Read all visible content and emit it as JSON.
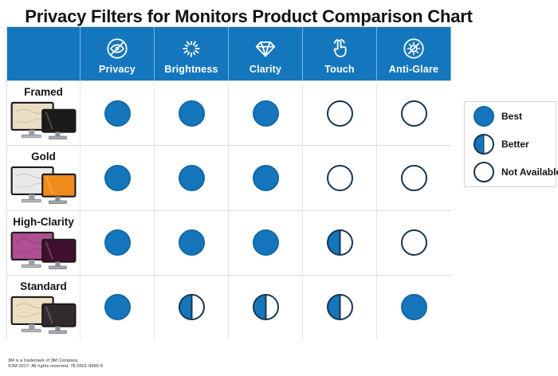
{
  "title": "Privacy Filters for Monitors Product Comparison Chart",
  "colors": {
    "header_blue": "#1477bd",
    "circle_blue": "#1576bb",
    "circle_outline": "#17354f",
    "grid_line": "#d9dde1"
  },
  "table": {
    "columns": [
      {
        "label": "Privacy",
        "icon": "privacy-icon"
      },
      {
        "label": "Brightness",
        "icon": "brightness-icon"
      },
      {
        "label": "Clarity",
        "icon": "clarity-icon"
      },
      {
        "label": "Touch",
        "icon": "touch-icon"
      },
      {
        "label": "Anti-Glare",
        "icon": "anti-glare-icon"
      }
    ],
    "rows": [
      {
        "label": "Framed",
        "screen_back": "#eadfc4",
        "screen_front": "#1c1a1b",
        "ratings": [
          "best",
          "best",
          "best",
          "na",
          "na"
        ]
      },
      {
        "label": "Gold",
        "screen_back": "#e9e9e7",
        "screen_front": "#ef8b1d",
        "ratings": [
          "best",
          "best",
          "best",
          "na",
          "na"
        ]
      },
      {
        "label": "High-Clarity",
        "screen_back": "#b04f92",
        "screen_front": "#42102e",
        "ratings": [
          "best",
          "best",
          "best",
          "better",
          "na"
        ]
      },
      {
        "label": "Standard",
        "screen_back": "#ecdfc2",
        "screen_front": "#332a2e",
        "ratings": [
          "best",
          "better",
          "better",
          "better",
          "best"
        ]
      }
    ]
  },
  "legend": {
    "items": [
      {
        "state": "best",
        "label": "Best"
      },
      {
        "state": "better",
        "label": "Better"
      },
      {
        "state": "na",
        "label": "Not Available"
      }
    ]
  },
  "footer": {
    "line1": "3M is a trademark of 3M Company.",
    "line2": "©3M 2017. All rights reserved. 78-0501-9996-9"
  },
  "chart_data": {
    "type": "table",
    "title": "Privacy Filters for Monitors Product Comparison Chart",
    "columns": [
      "Privacy",
      "Brightness",
      "Clarity",
      "Touch",
      "Anti-Glare"
    ],
    "rows": [
      "Framed",
      "Gold",
      "High-Clarity",
      "Standard"
    ],
    "values": [
      [
        "best",
        "best",
        "best",
        "not_available",
        "not_available"
      ],
      [
        "best",
        "best",
        "best",
        "not_available",
        "not_available"
      ],
      [
        "best",
        "best",
        "best",
        "better",
        "not_available"
      ],
      [
        "best",
        "better",
        "better",
        "better",
        "best"
      ]
    ],
    "legend": {
      "best": "Best",
      "better": "Better",
      "not_available": "Not Available"
    },
    "legend_position": "right"
  }
}
